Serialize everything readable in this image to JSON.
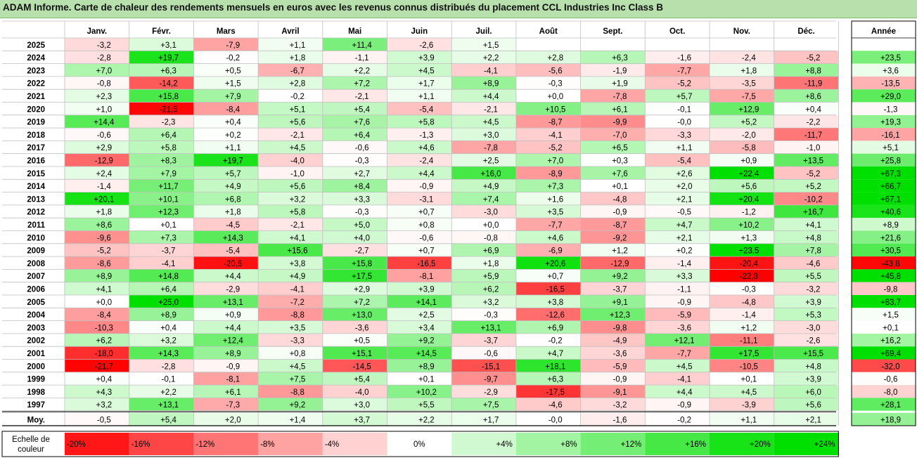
{
  "title": "ADAM Informe. Carte de chaleur des rendements mensuels en euros avec les revenus connus distribués du placement CCL Industries Inc Class B",
  "chart_data": {
    "type": "heatmap",
    "months": [
      "Janv.",
      "Févr.",
      "Mars",
      "Avril",
      "Mai",
      "Juin",
      "Juil.",
      "Août",
      "Sept.",
      "Oct.",
      "Nov.",
      "Déc."
    ],
    "year_header": "Année",
    "rows": [
      {
        "year": "2025",
        "values": [
          "-3,2",
          "+3,1",
          "-7,9",
          "+1,1",
          "+11,4",
          "-2,6",
          "+1,5",
          "",
          "",
          "",
          "",
          ""
        ],
        "annual": ""
      },
      {
        "year": "2024",
        "values": [
          "-2,8",
          "+19,7",
          "-0,2",
          "+1,8",
          "-1,1",
          "+3,9",
          "+2,2",
          "+2,8",
          "+6,3",
          "-1,6",
          "-2,4",
          "-5,2"
        ],
        "annual": "+23,5"
      },
      {
        "year": "2023",
        "values": [
          "+7,0",
          "+6,3",
          "+0,5",
          "-6,7",
          "+2,2",
          "+4,5",
          "-4,1",
          "-5,6",
          "-1,9",
          "-7,7",
          "+1,8",
          "+8,8"
        ],
        "annual": "+3,6"
      },
      {
        "year": "2022",
        "values": [
          "-0,8",
          "-14,2",
          "+1,5",
          "+2,8",
          "+7,2",
          "+1,7",
          "+8,9",
          "-0,3",
          "+1,9",
          "-5,2",
          "-3,5",
          "-11,9"
        ],
        "annual": "-13,5"
      },
      {
        "year": "2021",
        "values": [
          "+2,3",
          "+15,8",
          "+7,9",
          "-0,2",
          "-2,1",
          "+1,1",
          "+4,4",
          "+0,0",
          "-7,8",
          "+5,7",
          "-7,5",
          "+8,6"
        ],
        "annual": "+29,0"
      },
      {
        "year": "2020",
        "values": [
          "+1,0",
          "-21,5",
          "-8,4",
          "+5,1",
          "+5,4",
          "-5,4",
          "-2,1",
          "+10,5",
          "+6,1",
          "-0,1",
          "+12,9",
          "+0,4"
        ],
        "annual": "-1,3"
      },
      {
        "year": "2019",
        "values": [
          "+14,4",
          "-2,3",
          "+0,4",
          "+5,6",
          "+7,6",
          "+5,8",
          "+4,5",
          "-8,7",
          "-9,9",
          "-0,0",
          "+5,2",
          "-2,2"
        ],
        "annual": "+19,3"
      },
      {
        "year": "2018",
        "values": [
          "-0,6",
          "+6,4",
          "+0,2",
          "-2,1",
          "+6,4",
          "-1,3",
          "+3,0",
          "-4,1",
          "-7,0",
          "-3,3",
          "-2,0",
          "-11,7"
        ],
        "annual": "-16,1"
      },
      {
        "year": "2017",
        "values": [
          "+2,9",
          "+5,8",
          "+1,1",
          "+4,5",
          "-0,6",
          "+4,6",
          "-7,8",
          "-5,2",
          "+6,5",
          "+1,1",
          "-5,8",
          "-1,0"
        ],
        "annual": "+5,1"
      },
      {
        "year": "2016",
        "values": [
          "-12,9",
          "+8,3",
          "+19,7",
          "-4,0",
          "-0,3",
          "-2,4",
          "+2,5",
          "+7,0",
          "+0,3",
          "-5,4",
          "+0,9",
          "+13,5"
        ],
        "annual": "+25,8"
      },
      {
        "year": "2015",
        "values": [
          "+2,4",
          "+7,9",
          "+5,7",
          "-1,0",
          "+2,7",
          "+4,4",
          "+16,0",
          "-8,9",
          "+7,6",
          "+2,6",
          "+22,4",
          "-5,2"
        ],
        "annual": "+67,3"
      },
      {
        "year": "2014",
        "values": [
          "-1,4",
          "+11,7",
          "+4,9",
          "+5,6",
          "+8,4",
          "-0,9",
          "+4,9",
          "+7,3",
          "+0,1",
          "+2,0",
          "+5,6",
          "+5,2"
        ],
        "annual": "+66,7"
      },
      {
        "year": "2013",
        "values": [
          "+20,1",
          "+10,1",
          "+6,8",
          "+3,2",
          "+3,3",
          "-3,1",
          "+7,4",
          "+1,6",
          "-4,8",
          "+2,1",
          "+20,4",
          "-10,2"
        ],
        "annual": "+67,1"
      },
      {
        "year": "2012",
        "values": [
          "+1,8",
          "+12,3",
          "+1,8",
          "+5,8",
          "-0,3",
          "+0,7",
          "-3,0",
          "+3,5",
          "-0,9",
          "-0,5",
          "-1,2",
          "+16,7"
        ],
        "annual": "+40,6"
      },
      {
        "year": "2011",
        "values": [
          "+8,6",
          "+0,1",
          "-4,5",
          "-2,1",
          "+5,0",
          "+0,8",
          "+0,0",
          "-7,7",
          "-8,7",
          "+4,7",
          "+10,2",
          "+4,1"
        ],
        "annual": "+8,9"
      },
      {
        "year": "2010",
        "values": [
          "-9,6",
          "+7,3",
          "+14,3",
          "+4,1",
          "+4,0",
          "-0,6",
          "-0,8",
          "+4,6",
          "-9,2",
          "+2,1",
          "+1,3",
          "+4,8"
        ],
        "annual": "+21,6"
      },
      {
        "year": "2009",
        "values": [
          "-5,2",
          "-3,7",
          "-5,4",
          "+15,6",
          "-2,7",
          "+0,7",
          "+6,9",
          "-6,9",
          "+1,2",
          "+0,2",
          "+23,5",
          "+7,8"
        ],
        "annual": "+30,5"
      },
      {
        "year": "2008",
        "values": [
          "-8,6",
          "-4,1",
          "-20,5",
          "+3,8",
          "+15,8",
          "-16,5",
          "+1,8",
          "+20,6",
          "-12,9",
          "-1,4",
          "-20,4",
          "-4,6"
        ],
        "annual": "-43,8"
      },
      {
        "year": "2007",
        "values": [
          "+8,9",
          "+14,8",
          "+4,4",
          "+4,9",
          "+17,5",
          "-8,1",
          "+5,9",
          "+0,7",
          "+9,2",
          "+3,3",
          "-22,3",
          "+5,5"
        ],
        "annual": "+45,8"
      },
      {
        "year": "2006",
        "values": [
          "+4,1",
          "+6,4",
          "-2,9",
          "-4,1",
          "+2,9",
          "+3,9",
          "+6,2",
          "-16,5",
          "-3,7",
          "-1,1",
          "-0,3",
          "-3,2"
        ],
        "annual": "-9,8"
      },
      {
        "year": "2005",
        "values": [
          "+0,0",
          "+25,0",
          "+13,1",
          "-7,2",
          "+7,2",
          "+14,1",
          "+3,2",
          "+3,8",
          "+9,1",
          "-0,9",
          "-4,8",
          "+3,9"
        ],
        "annual": "+83,7"
      },
      {
        "year": "2004",
        "values": [
          "-8,4",
          "+8,9",
          "+0,9",
          "-8,8",
          "+13,0",
          "+2,5",
          "-0,3",
          "-12,6",
          "+12,3",
          "-5,9",
          "-1,4",
          "+5,3"
        ],
        "annual": "+1,5"
      },
      {
        "year": "2003",
        "values": [
          "-10,3",
          "+0,4",
          "+4,4",
          "+3,5",
          "-3,6",
          "+3,4",
          "+13,1",
          "+6,9",
          "-9,8",
          "-3,6",
          "+1,2",
          "-3,0"
        ],
        "annual": "+0,1"
      },
      {
        "year": "2002",
        "values": [
          "+6,2",
          "+3,2",
          "+12,4",
          "-3,3",
          "+0,5",
          "+9,2",
          "-3,7",
          "-0,2",
          "-4,9",
          "+12,1",
          "-11,1",
          "-2,6"
        ],
        "annual": "+16,2"
      },
      {
        "year": "2001",
        "values": [
          "-18,0",
          "+14,3",
          "+8,9",
          "+0,8",
          "+15,1",
          "+14,5",
          "-0,6",
          "+4,7",
          "-3,6",
          "-7,7",
          "+17,5",
          "+15,5"
        ],
        "annual": "+69,4"
      },
      {
        "year": "2000",
        "values": [
          "-21,7",
          "-2,8",
          "-0,9",
          "+4,5",
          "-14,5",
          "+8,9",
          "-15,1",
          "+18,1",
          "-5,9",
          "+4,5",
          "-10,5",
          "+4,8"
        ],
        "annual": "-32,0"
      },
      {
        "year": "1999",
        "values": [
          "+0,4",
          "-0,1",
          "-8,1",
          "+7,5",
          "+5,4",
          "+0,1",
          "-9,7",
          "+6,3",
          "-0,9",
          "-4,1",
          "+0,1",
          "+3,9"
        ],
        "annual": "-0,6"
      },
      {
        "year": "1998",
        "values": [
          "+4,3",
          "+2,2",
          "+6,1",
          "-8,8",
          "-4,0",
          "+10,2",
          "-2,9",
          "-17,5",
          "-9,1",
          "+4,4",
          "+4,5",
          "+6,0"
        ],
        "annual": "-8,0"
      },
      {
        "year": "1997",
        "values": [
          "+3,2",
          "+13,1",
          "-7,3",
          "+9,2",
          "+3,0",
          "+5,5",
          "+7,5",
          "-4,6",
          "-3,2",
          "-0,9",
          "-3,9",
          "+5,6"
        ],
        "annual": "+28,1"
      }
    ],
    "average": {
      "label": "Moy.",
      "values": [
        "-0,5",
        "+5,4",
        "+2,0",
        "+1,4",
        "+3,7",
        "+2,2",
        "+1,7",
        "-0,0",
        "-1,6",
        "-0,2",
        "+1,1",
        "+2,1"
      ],
      "annual": "+18,9"
    },
    "scale": {
      "label_line1": "Echelle de",
      "label_line2": "couleur",
      "items": [
        "-20%",
        "-16%",
        "-12%",
        "-8%",
        "-4%",
        "0%",
        "+4%",
        "+8%",
        "+12%",
        "+16%",
        "+20%",
        "+24%"
      ]
    },
    "colors": {
      "negative": "#ff0000",
      "positive": "#00e000",
      "neutral": "#ffffff",
      "title_bg": "#b8e0ad"
    }
  }
}
